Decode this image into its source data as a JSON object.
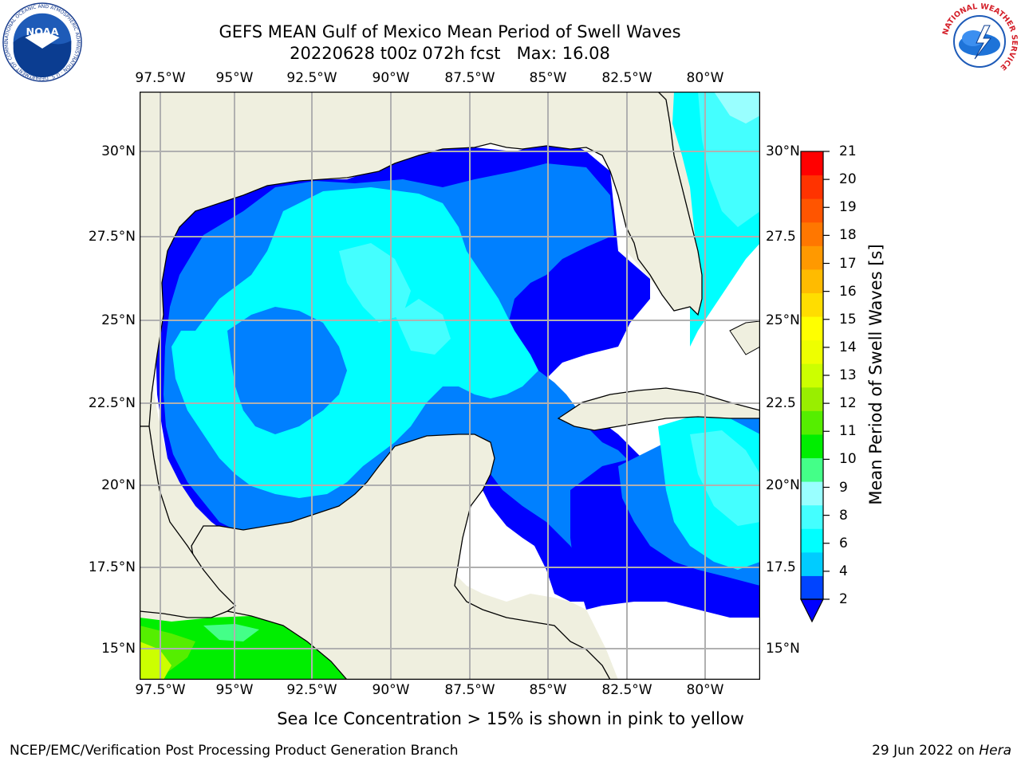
{
  "header": {
    "title_line1": "GEFS MEAN Gulf of Mexico Mean Period of Swell Waves",
    "title_line2": "20220628 t00z 072h fcst   Max: 16.08"
  },
  "map": {
    "lon_labels": [
      "97.5°W",
      "95°W",
      "92.5°W",
      "90°W",
      "87.5°W",
      "85°W",
      "82.5°W",
      "80°W"
    ],
    "lat_labels_left": [
      "30°N",
      "27.5°N",
      "25°N",
      "22.5°N",
      "20°N",
      "17.5°N",
      "15°N"
    ],
    "lat_labels_right": [
      "30°N",
      "27.5",
      "25°N",
      "22.5",
      "20°N",
      "17.5",
      "15°N"
    ],
    "land_color": "#efefdf",
    "ocean_missing_color": "#ffffff",
    "gridlines": true
  },
  "colorbar": {
    "label": "Mean Period of Swell Waves [s]",
    "ticks": [
      "21",
      "20",
      "19",
      "18",
      "17",
      "16",
      "15",
      "14",
      "13",
      "12",
      "11",
      "10",
      "9",
      "8",
      "6",
      "4",
      "2"
    ],
    "colors": [
      "#0044ff",
      "#00ccff",
      "#00ffff",
      "#44ffff",
      "#99ffff",
      "#44ff88",
      "#00ee00",
      "#55ee00",
      "#99ee00",
      "#ccff00",
      "#eeff00",
      "#ffff00",
      "#ffdd00",
      "#ffbb00",
      "#ff9900",
      "#ff7700",
      "#ff5500",
      "#ff3300",
      "#ff0000"
    ],
    "extend": "min"
  },
  "footnote": "Sea Ice Concentration > 15% is shown in pink to yellow",
  "footer": {
    "left": "NCEP/EMC/Verification Post Processing Product Generation Branch",
    "right_prefix": "29 Jun 2022 on ",
    "right_host": "Hera"
  },
  "logos": {
    "noaa_text": "NOAA",
    "noaa_ring": "NATIONAL OCEANIC AND ATMOSPHERIC ADMINISTRATION · U.S. DEPARTMENT OF COMMERCE",
    "nws_ring": "NATIONAL WEATHER SERVICE"
  }
}
